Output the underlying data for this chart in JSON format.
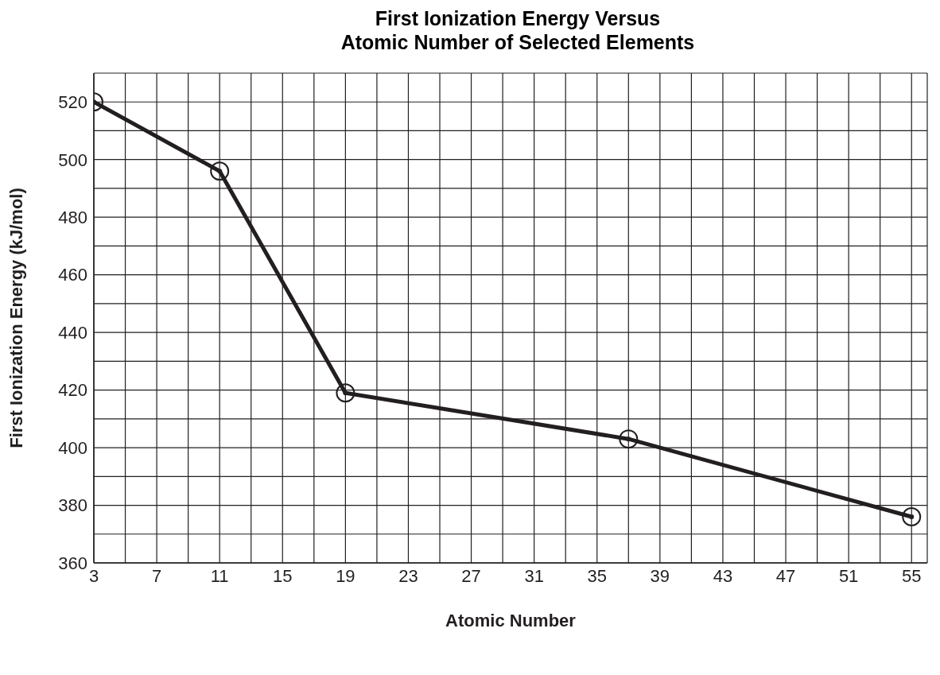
{
  "chart_data": {
    "type": "line",
    "title": "First Ionization Energy Versus\nAtomic Number of Selected Elements",
    "xlabel": "Atomic Number",
    "ylabel": "First Ionization Energy (kJ/mol)",
    "x": [
      3,
      11,
      19,
      37,
      55
    ],
    "series": [
      {
        "color": "#231f20",
        "values": [
          520,
          496,
          419,
          403,
          376
        ]
      }
    ],
    "xlim": [
      3,
      56
    ],
    "ylim": [
      360,
      530
    ],
    "xticks": [
      3,
      {
        "value": 5,
        "label": null
      },
      7,
      {
        "value": 9,
        "label": null
      },
      11,
      {
        "value": 13,
        "label": null
      },
      15,
      {
        "value": 17,
        "label": null
      },
      19,
      {
        "value": 21,
        "label": null
      },
      23,
      {
        "value": 25,
        "label": null
      },
      27,
      {
        "value": 29,
        "label": null
      },
      31,
      {
        "value": 33,
        "label": null
      },
      35,
      {
        "value": 37,
        "label": null
      },
      39,
      {
        "value": 41,
        "label": null
      },
      43,
      {
        "value": 45,
        "label": null
      },
      47,
      {
        "value": 49,
        "label": null
      },
      51,
      {
        "value": 53,
        "label": null
      },
      55
    ],
    "yticks": [
      360,
      {
        "value": 370,
        "label": null
      },
      380,
      {
        "value": 390,
        "label": null
      },
      400,
      {
        "value": 410,
        "label": null
      },
      420,
      {
        "value": 430,
        "label": null
      },
      440,
      {
        "value": 450,
        "label": null
      },
      460,
      {
        "value": 470,
        "label": null
      },
      480,
      {
        "value": 490,
        "label": null
      },
      500,
      {
        "value": 510,
        "label": null
      },
      520
    ],
    "grid": true,
    "marker": "circle",
    "line_style": "solid"
  }
}
